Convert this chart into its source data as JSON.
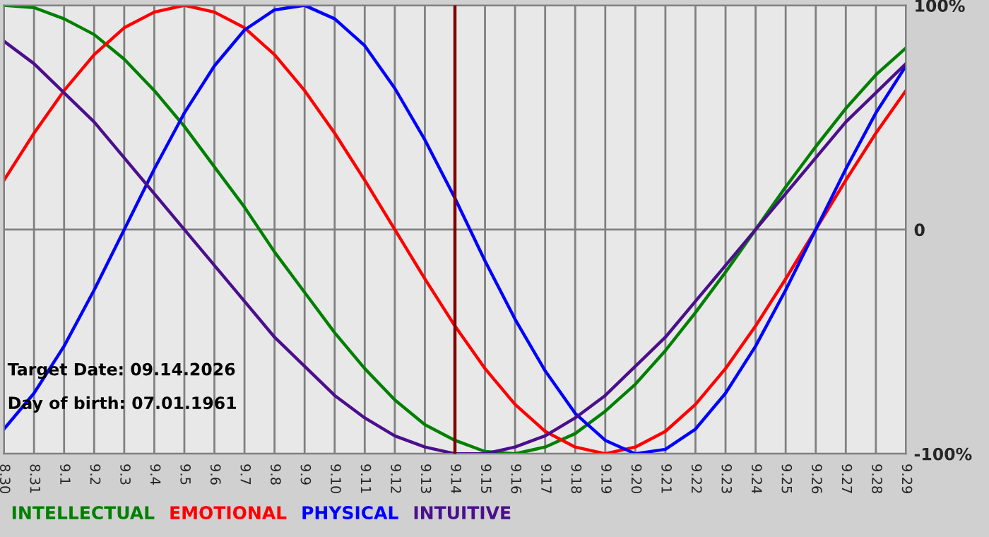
{
  "chart_data": {
    "type": "line",
    "categories": [
      "8.30",
      "8.31",
      "9.1",
      "9.2",
      "9.3",
      "9.4",
      "9.5",
      "9.6",
      "9.7",
      "9.8",
      "9.9",
      "9.10",
      "9.11",
      "9.12",
      "9.13",
      "9.14",
      "9.15",
      "9.16",
      "9.17",
      "9.18",
      "9.19",
      "9.20",
      "9.21",
      "9.22",
      "9.23",
      "9.24",
      "9.25",
      "9.26",
      "9.27",
      "9.28",
      "9.29"
    ],
    "series": [
      {
        "name": "INTELLECTUAL",
        "color": "#008000",
        "values": [
          100,
          99,
          94,
          87,
          76,
          62,
          46,
          28,
          10,
          -10,
          -28,
          -46,
          -62,
          -76,
          -87,
          -94,
          -99,
          -100,
          -97,
          -91,
          -81,
          -69,
          -54,
          -37,
          -19,
          0,
          19,
          37,
          54,
          69,
          81
        ]
      },
      {
        "name": "EMOTIONAL",
        "color": "#ff0000",
        "values": [
          22,
          43,
          62,
          78,
          90,
          97,
          100,
          97,
          90,
          78,
          62,
          43,
          22,
          0,
          -22,
          -43,
          -62,
          -78,
          -90,
          -97,
          -100,
          -97,
          -90,
          -78,
          -62,
          -43,
          -22,
          0,
          22,
          43,
          62
        ]
      },
      {
        "name": "PHYSICAL",
        "color": "#0000ff",
        "values": [
          -89,
          -73,
          -52,
          -27,
          0,
          27,
          52,
          73,
          89,
          98,
          100,
          94,
          82,
          63,
          40,
          14,
          -14,
          -40,
          -63,
          -82,
          -94,
          -100,
          -98,
          -89,
          -73,
          -52,
          -27,
          0,
          27,
          52,
          73
        ]
      },
      {
        "name": "INTUITIVE",
        "color": "#4b0f8c",
        "values": [
          84,
          74,
          61,
          48,
          32,
          16,
          0,
          -16,
          -32,
          -48,
          -61,
          -74,
          -84,
          -92,
          -97,
          -100,
          -100,
          -97,
          -92,
          -84,
          -74,
          -61,
          -48,
          -32,
          -16,
          0,
          16,
          32,
          48,
          61,
          74
        ]
      }
    ],
    "ylim": [
      -100,
      100
    ],
    "yticks": [
      {
        "value": 100,
        "label": "100%"
      },
      0,
      {
        "value": -100,
        "label": "-100%"
      }
    ],
    "ref_lines": [
      {
        "axis": "x",
        "value": "9.14",
        "color": "#800000"
      }
    ],
    "annotations": [
      "Target Date: 09.14.2026",
      "Day of birth: 07.01.1961"
    ],
    "grid": true,
    "legend": "bottom left",
    "marker": "none",
    "line_style": "solid"
  }
}
